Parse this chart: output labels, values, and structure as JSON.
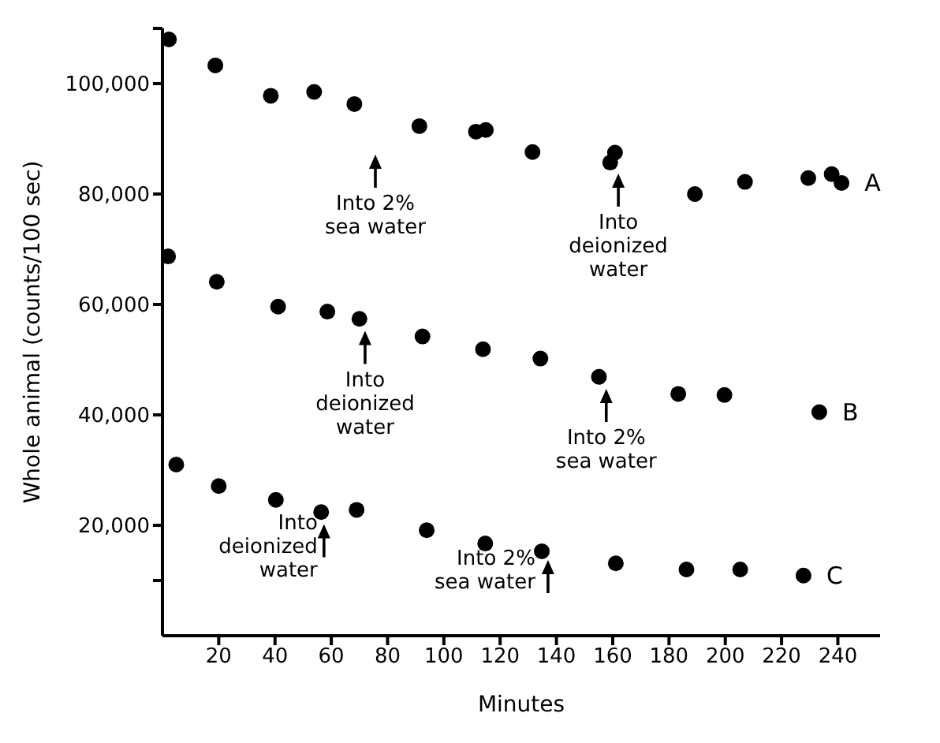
{
  "chart_data": {
    "type": "scatter",
    "xlabel": "Minutes",
    "ylabel": "Whole animal (counts/100 sec)",
    "marker": "circle",
    "grid": false,
    "legend": false,
    "xlim": [
      0,
      255
    ],
    "xticks": [
      20,
      40,
      60,
      80,
      100,
      120,
      140,
      160,
      180,
      200,
      220,
      240
    ],
    "ylim": [
      0,
      110000
    ],
    "yticks": [
      {
        "value": 10000,
        "label": null
      },
      {
        "value": 20000,
        "label": "20,000"
      },
      {
        "value": 40000,
        "label": "40,000"
      },
      {
        "value": 60000,
        "label": "60,000"
      },
      {
        "value": 80000,
        "label": "80,000"
      },
      {
        "value": 100000,
        "label": "100,000"
      },
      {
        "value": 110000,
        "label": null
      }
    ],
    "series": [
      {
        "name": "A",
        "color": "#000000",
        "x": [
          2.3,
          18.8,
          38.5,
          53.9,
          68.2,
          91.3,
          111.4,
          114.9,
          131.5,
          159.1,
          160.8,
          189.2,
          207,
          229.5,
          237.8,
          241.3
        ],
        "values": [
          108000,
          103300,
          97800,
          98500,
          96300,
          92300,
          91300,
          91600,
          87600,
          85700,
          87500,
          80000,
          82200,
          82900,
          83600,
          82000
        ]
      },
      {
        "name": "B",
        "color": "#000000",
        "x": [
          2,
          19.3,
          41.1,
          58.6,
          70,
          92.4,
          113.9,
          134.3,
          155.1,
          183.3,
          199.7,
          233.4
        ],
        "values": [
          68700,
          64100,
          59600,
          58700,
          57400,
          54200,
          51900,
          50200,
          46900,
          43800,
          43600,
          40500
        ]
      },
      {
        "name": "C",
        "color": "#000000",
        "x": [
          4.9,
          20,
          40.3,
          56.4,
          69,
          93.9,
          114.7,
          134.8,
          161.1,
          186.2,
          205.3,
          227.8
        ],
        "values": [
          31000,
          27100,
          24600,
          22400,
          22800,
          19100,
          16700,
          15300,
          13100,
          12000,
          12000,
          10900
        ]
      }
    ],
    "annotations": [
      "Into 2%\nsea water",
      {
        "text": "Into\ndeionized\nwater",
        "x": 162,
        "y": 84000
      },
      {
        "text": "Into\ndeionized\nwater",
        "x": 72,
        "y": 55500
      },
      {
        "text": "Into 2%\nsea water",
        "x": 157.7,
        "y": 45000
      },
      {
        "text": "Into\ndeionized\nwater",
        "x": 57.4,
        "y": 20500
      },
      {
        "text": "Into 2%\nsea water",
        "x": 137,
        "y": 14000
      }
    ]
  }
}
